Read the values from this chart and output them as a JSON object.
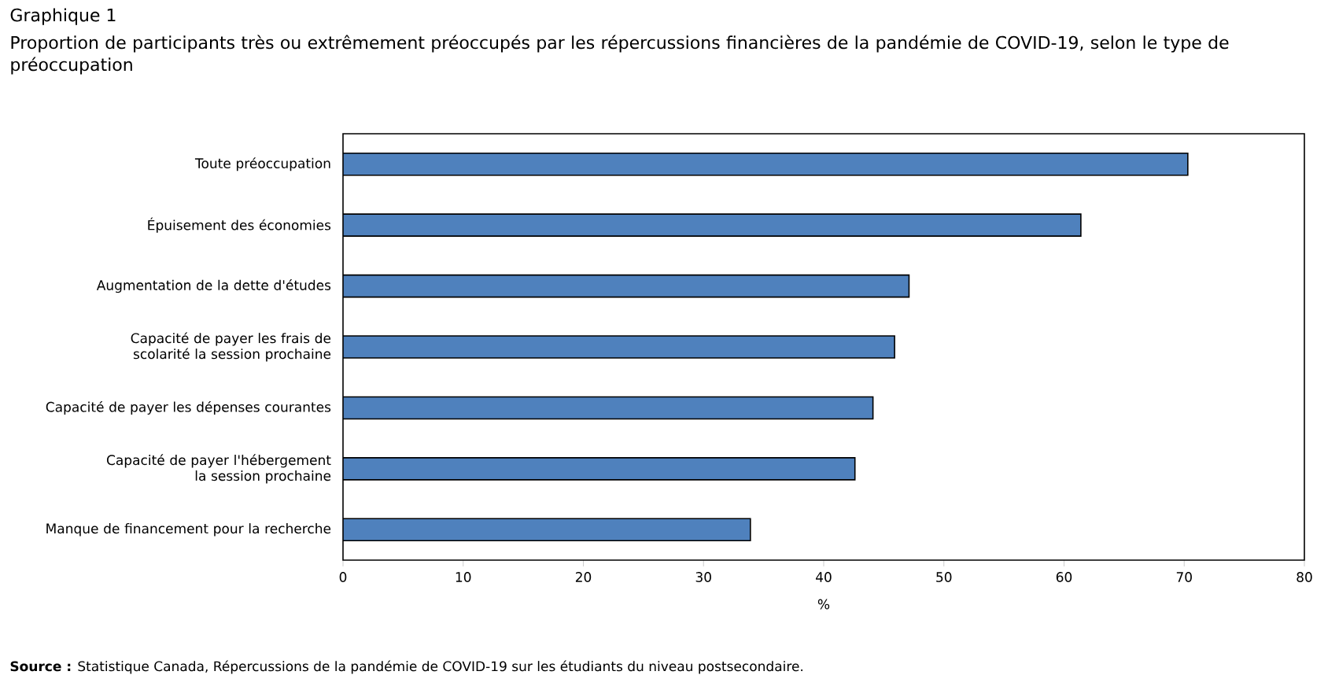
{
  "chart_data": {
    "type": "bar",
    "orientation": "horizontal",
    "title": "Graphique 1",
    "subtitle": "Proportion de participants très ou extrêmement préoccupés par les répercussions financières de la pandémie de COVID-19, selon le type de préoccupation",
    "categories": [
      "Toute préoccupation",
      "Épuisement des économies",
      "Augmentation de la dette d'études",
      "Capacité de payer les frais de scolarité la session prochaine",
      "Capacité de payer les dépenses courantes",
      "Capacité de payer l'hébergement la session prochaine",
      "Manque de financement pour la recherche"
    ],
    "values": [
      70.3,
      61.4,
      47.1,
      45.9,
      44.1,
      42.6,
      33.9
    ],
    "color": "#4f81bd",
    "xlim": [
      0,
      80
    ],
    "xticks": [
      0,
      10,
      20,
      30,
      40,
      50,
      60,
      70,
      80
    ],
    "xlabel": "%",
    "annotations": [
      "**Source :** Statistique Canada, Répercussions de la pandémie de COVID-19 sur les étudiants du niveau postsecondaire."
    ]
  }
}
